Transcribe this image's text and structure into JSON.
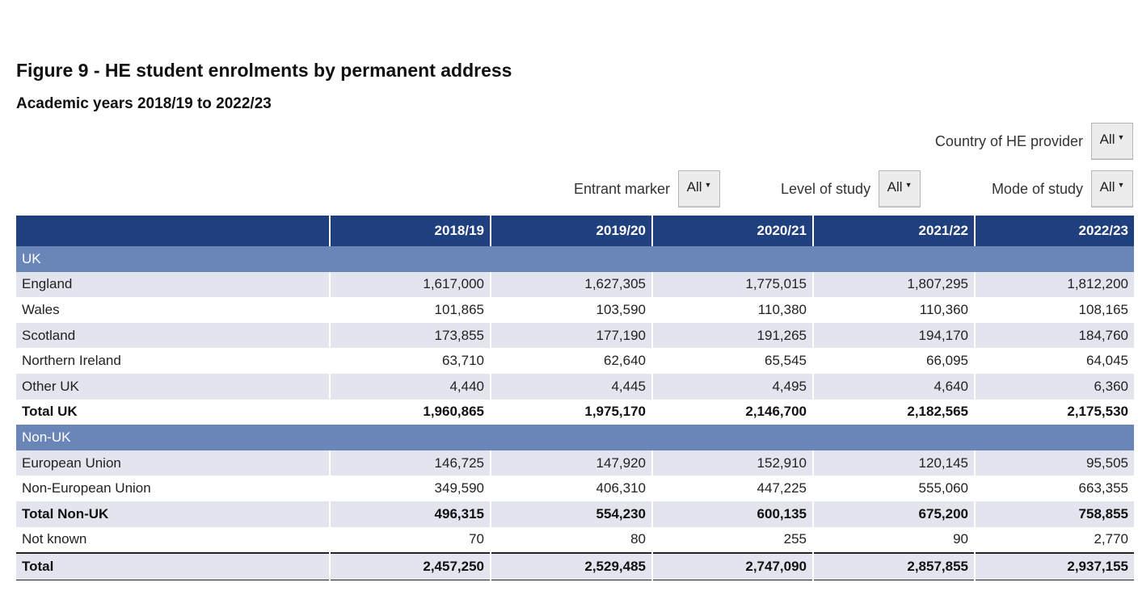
{
  "header": {
    "title": "Figure 9 - HE student enrolments by permanent address",
    "subtitle": "Academic years 2018/19 to 2022/23"
  },
  "filters": {
    "country": {
      "label": "Country of HE provider",
      "value": "All"
    },
    "entrant": {
      "label": "Entrant marker",
      "value": "All"
    },
    "level": {
      "label": "Level of study",
      "value": "All"
    },
    "mode": {
      "label": "Mode of study",
      "value": "All"
    }
  },
  "table": {
    "columns": [
      "",
      "2018/19",
      "2019/20",
      "2020/21",
      "2021/22",
      "2022/23"
    ],
    "sections": [
      {
        "label": "UK",
        "rows": [
          {
            "label": "England",
            "values": [
              "1,617,000",
              "1,627,305",
              "1,775,015",
              "1,807,295",
              "1,812,200"
            ]
          },
          {
            "label": "Wales",
            "values": [
              "101,865",
              "103,590",
              "110,380",
              "110,360",
              "108,165"
            ]
          },
          {
            "label": "Scotland",
            "values": [
              "173,855",
              "177,190",
              "191,265",
              "194,170",
              "184,760"
            ]
          },
          {
            "label": "Northern Ireland",
            "values": [
              "63,710",
              "62,640",
              "65,545",
              "66,095",
              "64,045"
            ]
          },
          {
            "label": "Other UK",
            "values": [
              "4,440",
              "4,445",
              "4,495",
              "4,640",
              "6,360"
            ]
          },
          {
            "label": "Total UK",
            "values": [
              "1,960,865",
              "1,975,170",
              "2,146,700",
              "2,182,565",
              "2,175,530"
            ],
            "total": true
          }
        ]
      },
      {
        "label": "Non-UK",
        "rows": [
          {
            "label": "European Union",
            "values": [
              "146,725",
              "147,920",
              "152,910",
              "120,145",
              "95,505"
            ]
          },
          {
            "label": "Non-European Union",
            "values": [
              "349,590",
              "406,310",
              "447,225",
              "555,060",
              "663,355"
            ]
          },
          {
            "label": "Total Non-UK",
            "values": [
              "496,315",
              "554,230",
              "600,135",
              "675,200",
              "758,855"
            ],
            "total": true
          },
          {
            "label": "Not known",
            "values": [
              "70",
              "80",
              "255",
              "90",
              "2,770"
            ]
          },
          {
            "label": "Total",
            "values": [
              "2,457,250",
              "2,529,485",
              "2,747,090",
              "2,857,855",
              "2,937,155"
            ],
            "total": true,
            "grand": true
          }
        ]
      }
    ]
  }
}
